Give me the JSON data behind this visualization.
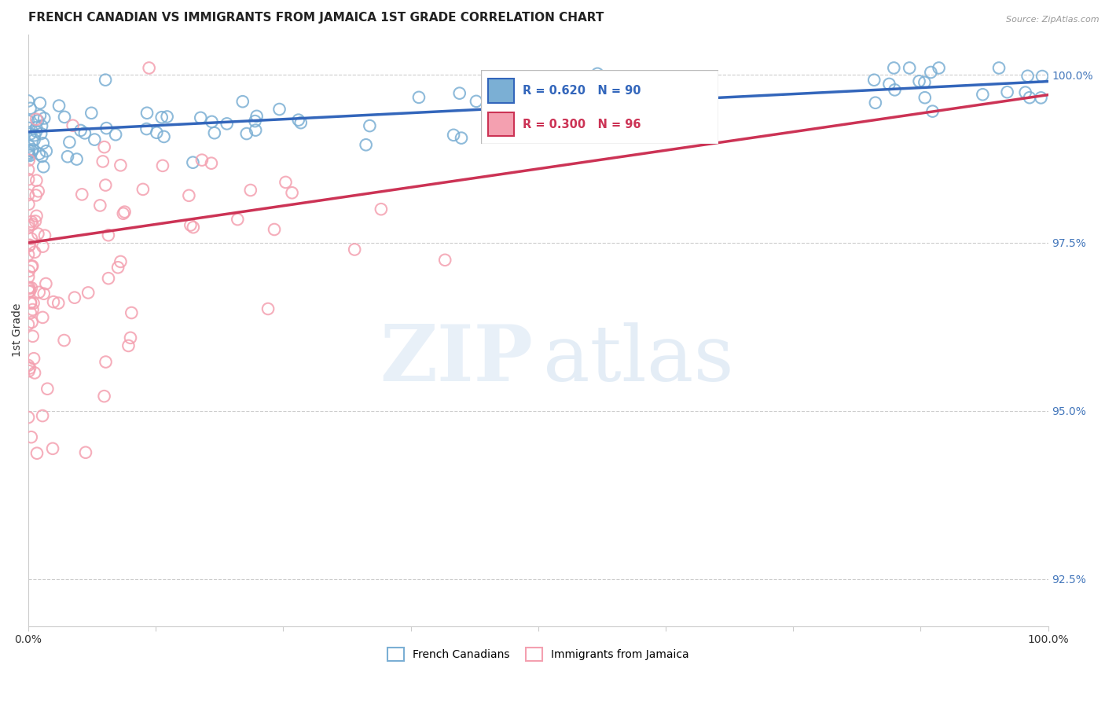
{
  "title": "FRENCH CANADIAN VS IMMIGRANTS FROM JAMAICA 1ST GRADE CORRELATION CHART",
  "source": "Source: ZipAtlas.com",
  "ylabel": "1st Grade",
  "ylabel_right_ticks": [
    "100.0%",
    "97.5%",
    "95.0%",
    "92.5%"
  ],
  "ylabel_right_values": [
    1.0,
    0.975,
    0.95,
    0.925
  ],
  "xmin": 0.0,
  "xmax": 1.0,
  "ymin": 0.918,
  "ymax": 1.006,
  "blue_R": 0.62,
  "blue_N": 90,
  "pink_R": 0.3,
  "pink_N": 96,
  "blue_color": "#7BAFD4",
  "pink_color": "#F4A0B0",
  "blue_line_color": "#3366BB",
  "pink_line_color": "#CC3355",
  "legend_blue_label": "French Canadians",
  "legend_pink_label": "Immigrants from Jamaica",
  "grid_color": "#CCCCCC",
  "background_color": "#FFFFFF",
  "title_fontsize": 11,
  "source_fontsize": 8,
  "blue_intercept": 0.9915,
  "blue_slope": 0.0075,
  "pink_intercept": 0.975,
  "pink_slope": 0.022
}
